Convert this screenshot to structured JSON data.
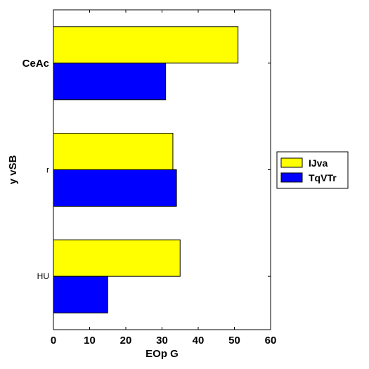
{
  "chart_data": {
    "type": "bar",
    "orientation": "horizontal",
    "categories": [
      "CeAc",
      "r",
      "HU"
    ],
    "category_label_weights": [
      "bold",
      "normal",
      "normal"
    ],
    "series": [
      {
        "name": "IJva",
        "color": "#ffff00",
        "values": [
          51,
          33,
          35
        ]
      },
      {
        "name": "TqVTr",
        "color": "#0000ff",
        "values": [
          31,
          34,
          15
        ]
      }
    ],
    "xlabel": "EOp G",
    "ylabel": "y vSB",
    "xlim": [
      0,
      60
    ],
    "xticks": [
      0,
      10,
      20,
      30,
      40,
      50,
      60
    ],
    "grid": false,
    "legend_position": "right"
  }
}
